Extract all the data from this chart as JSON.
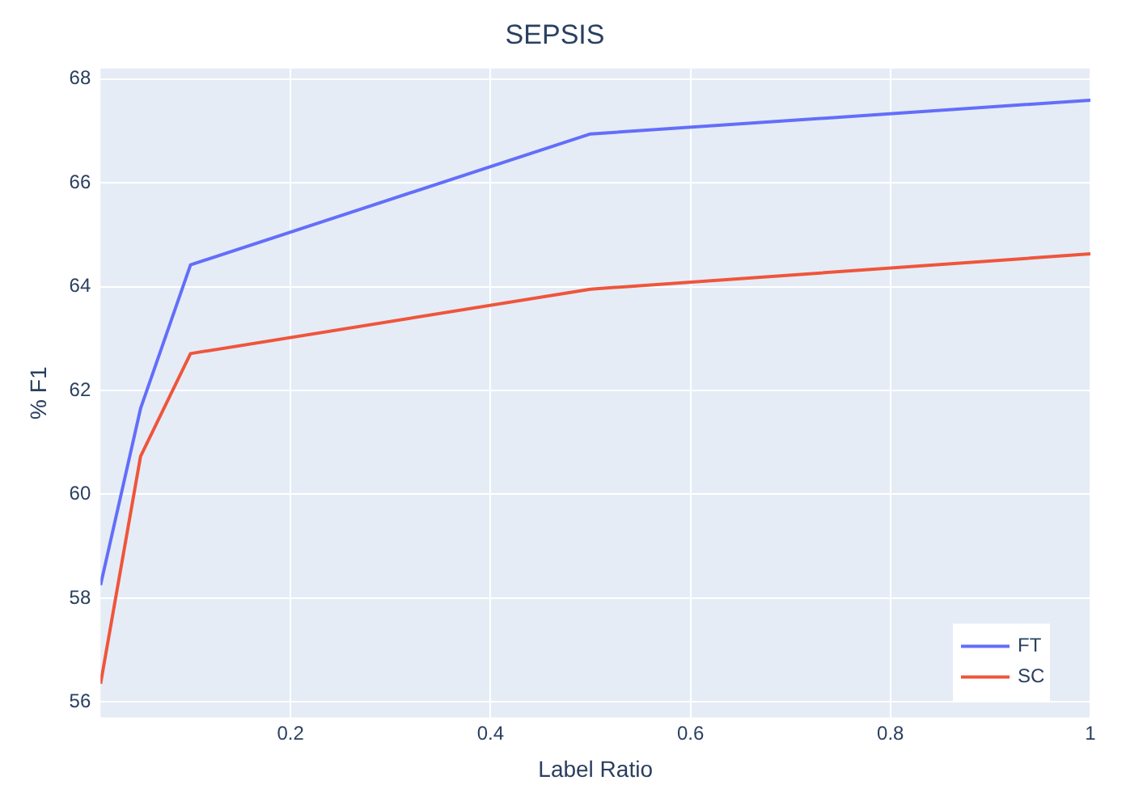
{
  "chart_data": {
    "type": "line",
    "title": "SEPSIS",
    "xlabel": "Label Ratio",
    "ylabel": "% F1",
    "x": [
      0.01,
      0.05,
      0.1,
      0.5,
      1
    ],
    "series": [
      {
        "name": "FT",
        "color": "#636efa",
        "values": [
          58.25,
          61.65,
          64.42,
          66.94,
          67.59
        ]
      },
      {
        "name": "SC",
        "color": "#ef553b",
        "values": [
          56.35,
          60.73,
          62.71,
          63.95,
          64.63
        ]
      }
    ],
    "xlim": [
      0.01,
      1
    ],
    "xticks": [
      0.2,
      0.4,
      0.6,
      0.8,
      1
    ],
    "ylim": [
      55.7,
      68.2
    ],
    "yticks": [
      56,
      58,
      60,
      62,
      64,
      66,
      68
    ],
    "grid": true,
    "legend": "bottom right",
    "marker": "none",
    "line_style": "solid"
  }
}
